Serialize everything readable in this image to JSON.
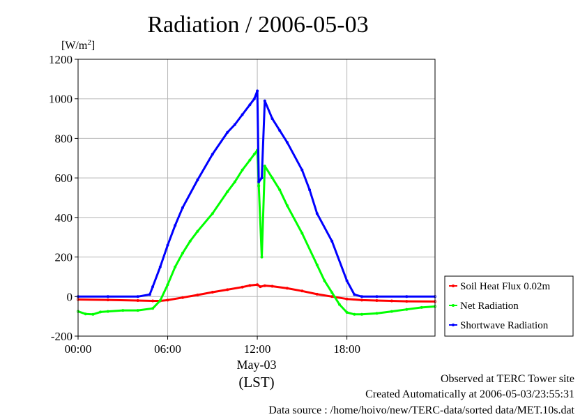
{
  "chart_data": {
    "type": "line",
    "title": "Radiation / 2006-05-03",
    "ylabel": "[W/m",
    "ylabel_sup": "2",
    "ylabel_end": "]",
    "xlabel": "(LST)",
    "date_label": "May-03",
    "ylim": [
      -200,
      1200
    ],
    "xlim": [
      0,
      23.9
    ],
    "yticks": [
      -200,
      0,
      200,
      400,
      600,
      800,
      1000,
      1200
    ],
    "xticks": [
      {
        "value": 0,
        "label": "00:00"
      },
      {
        "value": 6,
        "label": "06:00"
      },
      {
        "value": 12,
        "label": "12:00"
      },
      {
        "value": 18,
        "label": "18:00"
      }
    ],
    "grid": true,
    "legend_position": "right",
    "series": [
      {
        "name": "Soil Heat Flux 0.02m",
        "color": "#ff0000",
        "x": [
          0,
          2,
          4,
          5,
          5.5,
          6,
          7,
          8,
          9,
          10,
          11,
          11.5,
          12,
          12.2,
          12.5,
          13,
          14,
          15,
          16,
          17,
          18,
          19,
          20,
          21,
          22,
          23.9
        ],
        "y": [
          -15,
          -17,
          -20,
          -22,
          -22,
          -18,
          -5,
          8,
          22,
          35,
          48,
          56,
          60,
          50,
          55,
          52,
          42,
          28,
          12,
          0,
          -12,
          -18,
          -20,
          -22,
          -24,
          -25
        ]
      },
      {
        "name": "Net Radiation",
        "color": "#00ff00",
        "x": [
          0,
          0.5,
          1,
          1.5,
          2,
          3,
          4,
          5,
          5.5,
          6,
          6.5,
          7,
          7.5,
          8,
          9,
          10,
          10.5,
          11,
          11.5,
          11.8,
          12,
          12.1,
          12.3,
          12.5,
          13,
          13.5,
          14,
          15,
          16,
          16.5,
          17,
          17.5,
          18,
          18.5,
          19,
          20,
          21,
          22,
          23,
          23.9
        ],
        "y": [
          -75,
          -88,
          -90,
          -78,
          -75,
          -70,
          -70,
          -60,
          -20,
          60,
          150,
          220,
          280,
          330,
          420,
          530,
          580,
          640,
          690,
          720,
          740,
          560,
          200,
          660,
          600,
          540,
          460,
          320,
          160,
          80,
          20,
          -40,
          -80,
          -90,
          -90,
          -85,
          -75,
          -65,
          -55,
          -50
        ]
      },
      {
        "name": "Shortwave Radiation",
        "color": "#0000ff",
        "x": [
          0,
          2,
          4,
          4.8,
          5,
          5.5,
          6,
          6.5,
          7,
          8,
          9,
          10,
          10.5,
          11,
          11.5,
          11.8,
          12,
          12.1,
          12.3,
          12.5,
          13,
          13.5,
          14,
          15,
          15.5,
          16,
          17,
          18,
          18.5,
          19,
          20,
          22,
          23.9
        ],
        "y": [
          0,
          0,
          0,
          10,
          50,
          150,
          260,
          360,
          450,
          590,
          720,
          830,
          870,
          920,
          970,
          1000,
          1040,
          580,
          600,
          990,
          900,
          840,
          780,
          640,
          540,
          420,
          280,
          80,
          10,
          0,
          0,
          0,
          0
        ]
      }
    ]
  },
  "footer": {
    "observed": "Observed at TERC Tower site",
    "created": "Created Automatically at 2006-05-03/23:55:31",
    "source": "Data source : /home/hoivo/new/TERC-data/sorted  data/MET.10s.dat"
  }
}
